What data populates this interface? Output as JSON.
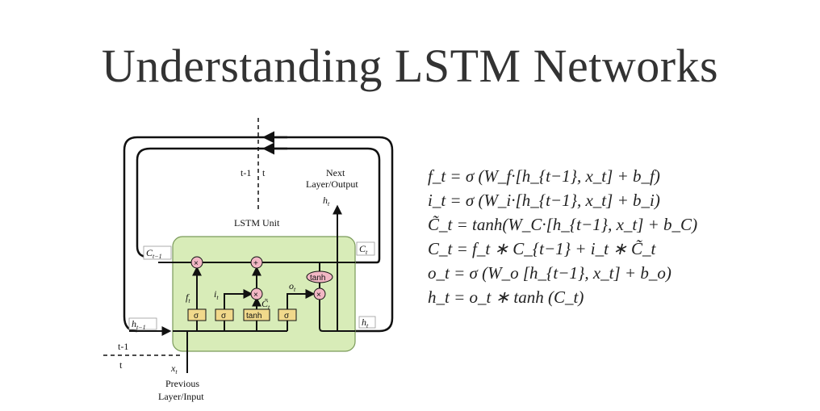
{
  "title": "Understanding LSTM Networks",
  "diagram": {
    "time_top_label": "t-1",
    "time_top_label_t": "t",
    "time_bottom_label": "t-1",
    "time_bottom_label_t": "t",
    "unit_label": "LSTM Unit",
    "next_label_line1": "Next",
    "next_label_line2": "Layer/Output",
    "prev_label_line1": "Previous",
    "prev_label_line2": "Layer/Input",
    "c_prev": "C",
    "c_prev_sub": "t−1",
    "c_t": "C",
    "c_t_sub": "t",
    "h_prev": "h",
    "h_prev_sub": "t−1",
    "h_t_out": "h",
    "h_t_out_sub": "t",
    "h_t_right": "h",
    "h_t_right_sub": "t",
    "x_t": "x",
    "x_t_sub": "t",
    "f_t": "f",
    "f_t_sub": "t",
    "i_t": "i",
    "i_t_sub": "t",
    "o_t": "o",
    "o_t_sub": "t",
    "c_tilde": "C̃",
    "c_tilde_sub": "t",
    "gate_sigma": "σ",
    "gate_tanh": "tanh",
    "op_mul": "×",
    "op_add": "+"
  },
  "equations": [
    "f_t = σ (W_f·[h_{t−1}, x_t] + b_f)",
    "i_t = σ (W_i·[h_{t−1}, x_t] + b_i)",
    "C̃_t = tanh(W_C·[h_{t−1}, x_t] + b_C)",
    "C_t = f_t ∗ C_{t−1} + i_t ∗ C̃_t",
    "o_t = σ (W_o [h_{t−1}, x_t] + b_o)",
    "h_t = o_t ∗ tanh (C_t)"
  ]
}
